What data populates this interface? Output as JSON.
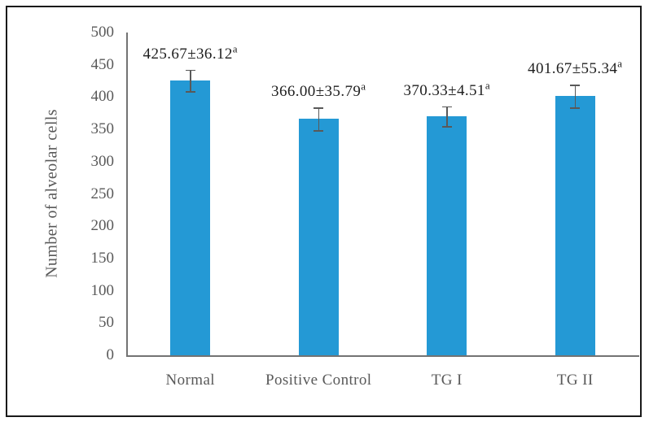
{
  "figure": {
    "border_color": "#1a1a1a",
    "background_color": "#ffffff"
  },
  "chart_data": {
    "type": "bar",
    "title": "",
    "ylabel": "Number of alveolar cells",
    "xlabel": "",
    "categories": [
      "Normal",
      "Positive Control",
      "TG I",
      "TG II"
    ],
    "values": [
      425.67,
      366.0,
      370.33,
      401.67
    ],
    "errors": [
      36.12,
      35.79,
      4.51,
      55.34
    ],
    "data_labels": [
      {
        "text": "425.67±36.12",
        "sup": "a"
      },
      {
        "text": "366.00±35.79",
        "sup": "a"
      },
      {
        "text": "370.33±4.51",
        "sup": "a"
      },
      {
        "text": "401.67±55.34",
        "sup": "a"
      }
    ],
    "ylim": [
      0,
      500
    ],
    "yticks": [
      0,
      50,
      100,
      150,
      200,
      250,
      300,
      350,
      400,
      450,
      500
    ],
    "grid": false,
    "legend": "none",
    "bar_color": "#2499D5",
    "error_bar_color": "#595959",
    "axis_line_color": "#737373",
    "tick_label_color": "#595959",
    "data_label_color": "#1f1f1f",
    "error_bar_display_units": [
      16.4,
      17.6,
      15.6,
      17.6
    ]
  }
}
